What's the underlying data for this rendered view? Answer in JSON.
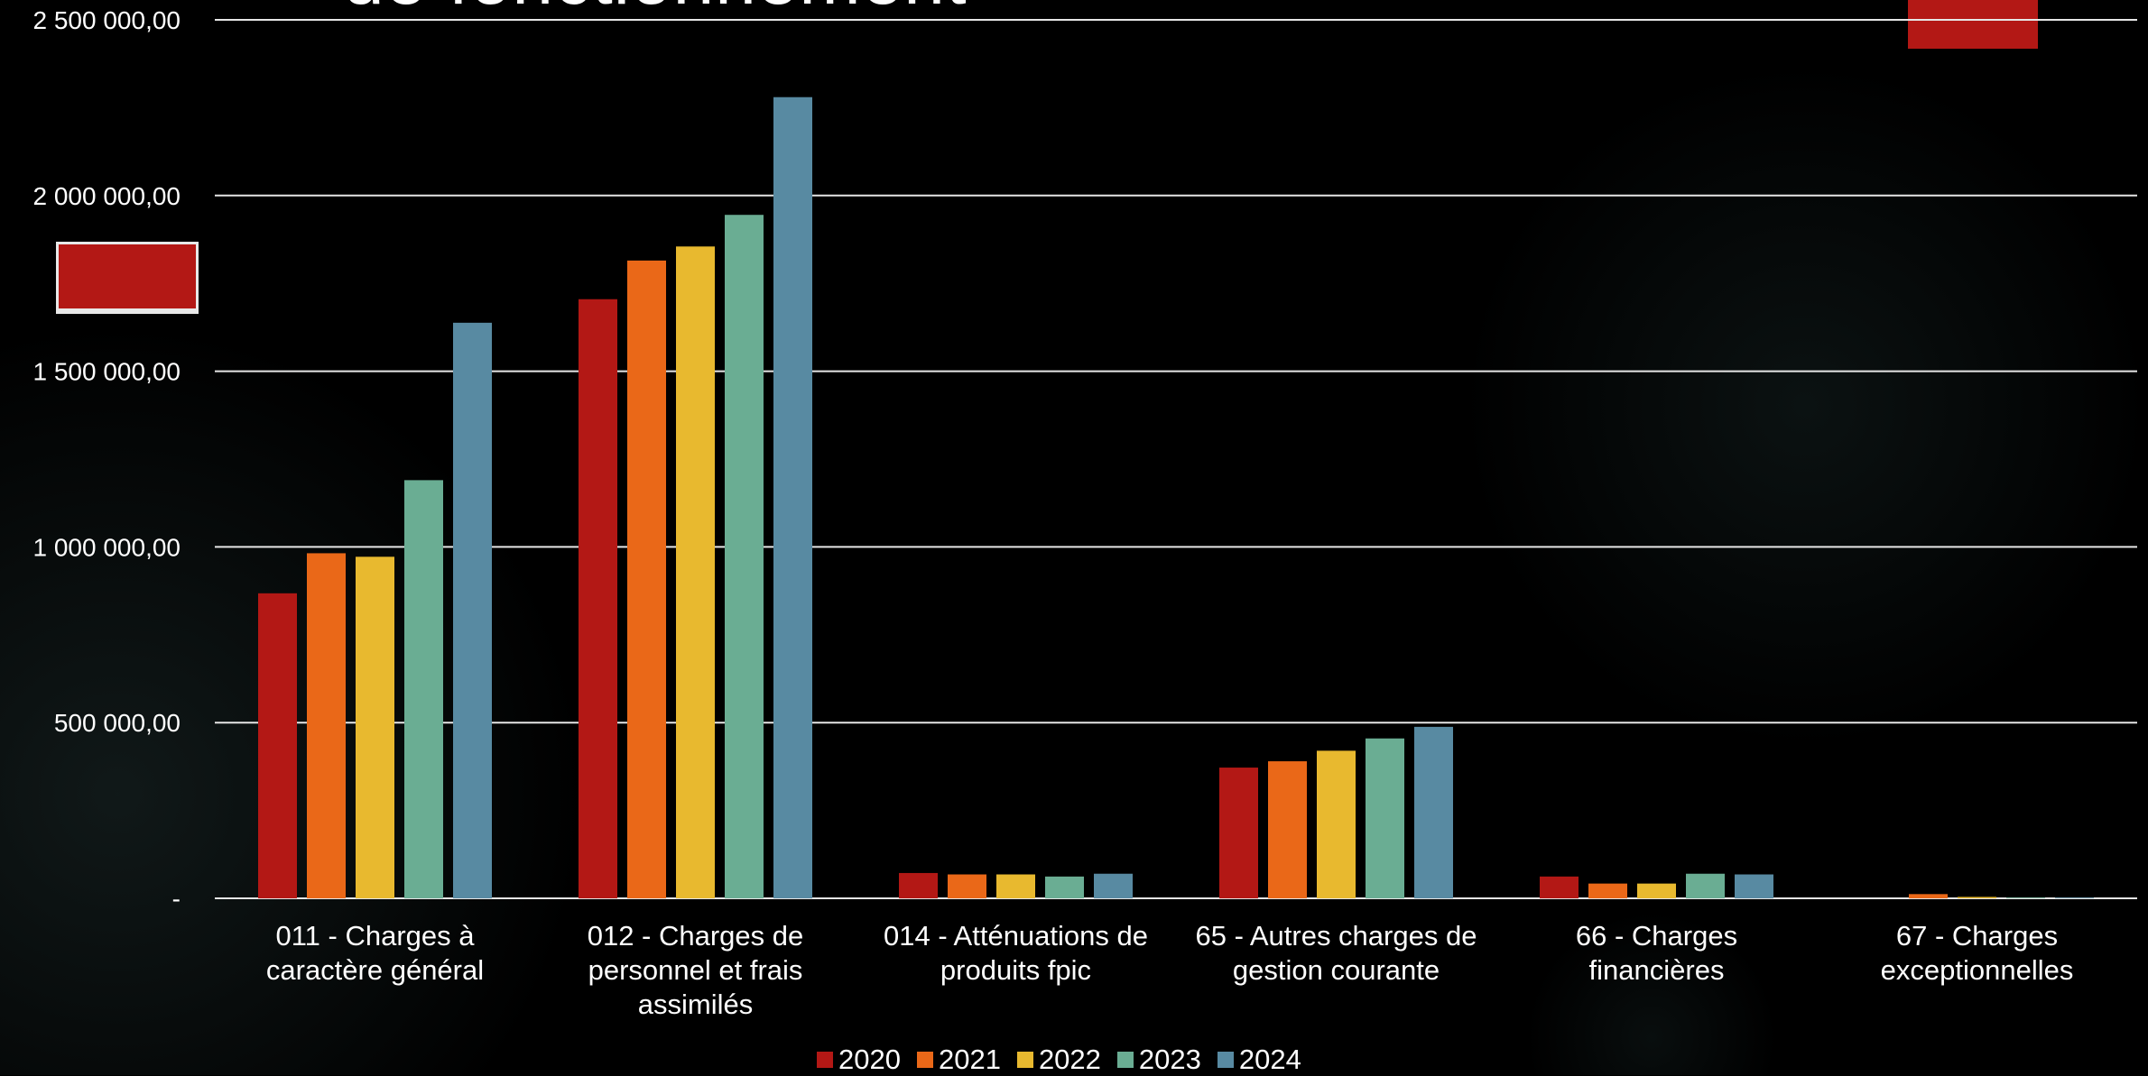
{
  "slide": {
    "title": "de fonctionnement"
  },
  "colors": {
    "accent_red": "#b31815",
    "series": [
      "#b31815",
      "#ea6818",
      "#e8b92f",
      "#6aad93",
      "#588aa2"
    ]
  },
  "chart_data": {
    "type": "bar",
    "categories": [
      [
        "011 - Charges à",
        "caractère général"
      ],
      [
        "012 - Charges de",
        "personnel et frais",
        "assimilés"
      ],
      [
        "014 - Atténuations de",
        "produits fpic"
      ],
      [
        "65 - Autres charges de",
        "gestion courante"
      ],
      [
        "66 - Charges",
        "financières"
      ],
      [
        "67 - Charges",
        "exceptionnelles"
      ]
    ],
    "series": [
      {
        "name": "2020",
        "values": [
          868000,
          1705000,
          72000,
          372000,
          62000,
          0
        ]
      },
      {
        "name": "2021",
        "values": [
          982000,
          1815000,
          68000,
          390000,
          42000,
          12000
        ]
      },
      {
        "name": "2022",
        "values": [
          972000,
          1855000,
          68000,
          420000,
          42000,
          4000
        ]
      },
      {
        "name": "2023",
        "values": [
          1190000,
          1945000,
          62000,
          455000,
          70000,
          2000
        ]
      },
      {
        "name": "2024",
        "values": [
          1638000,
          2280000,
          70000,
          488000,
          68000,
          2000
        ]
      }
    ],
    "y_ticks": [
      {
        "value": 0,
        "label": "-"
      },
      {
        "value": 500000,
        "label": "500 000,00"
      },
      {
        "value": 1000000,
        "label": "1 000 000,00"
      },
      {
        "value": 1500000,
        "label": "1 500 000,00"
      },
      {
        "value": 2000000,
        "label": "2 000 000,00"
      },
      {
        "value": 2500000,
        "label": "2 500 000,00"
      }
    ],
    "ylim": [
      0,
      2500000
    ],
    "grid": true,
    "legend": "bottom-center"
  }
}
